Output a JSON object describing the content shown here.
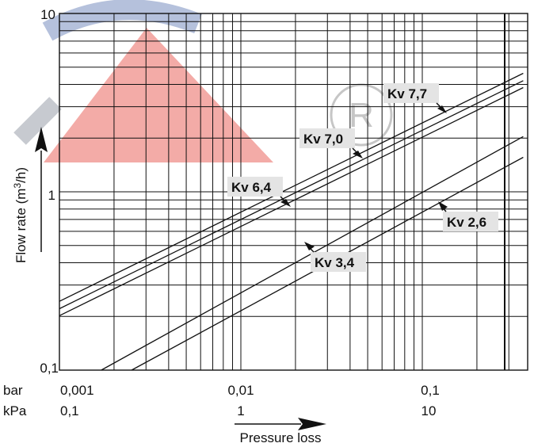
{
  "chart_data": {
    "type": "line",
    "scale": {
      "x": "log",
      "y": "log"
    },
    "xlabel": "Pressure loss",
    "ylabel": "Flow rate (m3/h)",
    "ylabel_parts": {
      "pre": "Flow rate (m",
      "sup": "3",
      "post": "/h)"
    },
    "xlim": [
      0.001,
      0.36
    ],
    "ylim": [
      0.1,
      10
    ],
    "x_unit_labels": {
      "bar": "bar",
      "kpa": "kPa"
    },
    "x_ticks_bar": [
      "0,001",
      "0,01",
      "0,1"
    ],
    "x_ticks_kpa": [
      "0,1",
      "1",
      "10"
    ],
    "y_ticks": [
      "0,1",
      "1",
      "10"
    ],
    "grid": true,
    "series": [
      {
        "name": "Kv 7,7",
        "kv": 7.7,
        "x": [
          0.001,
          0.36
        ],
        "y": [
          0.243,
          4.62
        ]
      },
      {
        "name": "Kv 7,0",
        "kv": 7.0,
        "x": [
          0.001,
          0.36
        ],
        "y": [
          0.221,
          4.2
        ]
      },
      {
        "name": "Kv 6,4",
        "kv": 6.4,
        "x": [
          0.001,
          0.36
        ],
        "y": [
          0.202,
          3.84
        ]
      },
      {
        "name": "Kv 3,4",
        "kv": 3.4,
        "x": [
          0.0017,
          0.36
        ],
        "y": [
          0.1,
          2.04
        ]
      },
      {
        "name": "Kv 2,6",
        "kv": 2.6,
        "x": [
          0.0025,
          0.36
        ],
        "y": [
          0.1,
          1.56
        ]
      }
    ],
    "annotations": [
      {
        "text": "Kv 7,7",
        "series": "Kv 7,7"
      },
      {
        "text": "Kv 7,0",
        "series": "Kv 7,0"
      },
      {
        "text": "Kv 6,4",
        "series": "Kv 6,4"
      },
      {
        "text": "Kv 3,4",
        "series": "Kv 3,4"
      },
      {
        "text": "Kv 2,6",
        "series": "Kv 2,6"
      }
    ]
  }
}
